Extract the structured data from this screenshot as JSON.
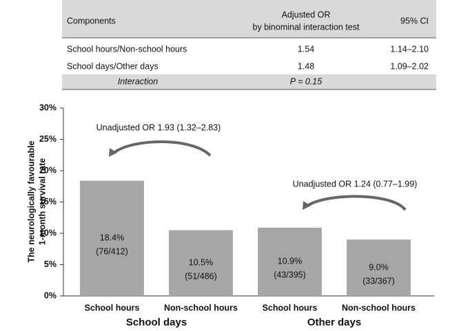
{
  "table": {
    "header": {
      "components": "Components",
      "or_lines": [
        "Adjusted OR",
        "by binominal interaction test"
      ],
      "ci": "95% CI"
    },
    "rows": [
      [
        "School hours/Non-school hours",
        "1.54",
        "1.14–2.10"
      ],
      [
        "School days/Other days",
        "1.48",
        "1.09–2.02"
      ]
    ],
    "interaction": [
      "Interaction",
      "P = 0.15"
    ]
  },
  "chart_data": {
    "type": "bar",
    "ylabel": [
      "The neurologically favourable",
      "1-month survival rate"
    ],
    "categories": [
      "School hours",
      "Non-school hours",
      "School hours",
      "Non-school hours"
    ],
    "groups": [
      "School days",
      "Other days"
    ],
    "values": [
      18.4,
      10.5,
      10.9,
      9.0
    ],
    "value_labels": [
      "18.4%",
      "10.5%",
      "10.9%",
      "9.0%"
    ],
    "counts": [
      "(76/412)",
      "(51/486)",
      "(43/395)",
      "(33/367)"
    ],
    "color": "#a6a6a6",
    "ylim": [
      0,
      30
    ],
    "yticks": [
      {
        "value": 0,
        "label": "0%"
      },
      {
        "value": 5,
        "label": "5%"
      },
      {
        "value": 10,
        "label": "10%"
      },
      {
        "value": 15,
        "label": "15%"
      },
      {
        "value": 20,
        "label": "20%"
      },
      {
        "value": 25,
        "label": "25%"
      },
      {
        "value": 30,
        "label": "30%"
      }
    ],
    "annotations": [
      "Unadjusted OR 1.93 (1.32–2.83)",
      "Unadjusted OR 1.24 (0.77–1.99)"
    ]
  }
}
